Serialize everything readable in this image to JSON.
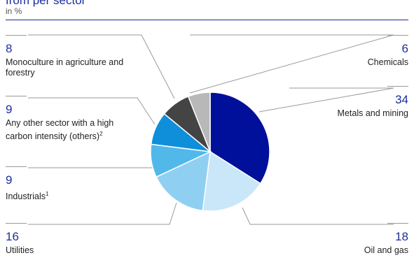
{
  "header": {
    "title": "from per sector",
    "subtitle": "in %"
  },
  "chart_data": {
    "type": "pie",
    "unit": "%",
    "slices": [
      {
        "name": "Metals and mining",
        "value": 34,
        "color": "#00109a",
        "note": ""
      },
      {
        "name": "Oil and gas",
        "value": 18,
        "color": "#c9e7f9",
        "note": ""
      },
      {
        "name": "Utilities",
        "value": 16,
        "color": "#8fd0f2",
        "note": ""
      },
      {
        "name": "Industrials",
        "value": 9,
        "color": "#52b8ea",
        "note": "1"
      },
      {
        "name": "Any other sector with a high carbon intensity (others)",
        "value": 9,
        "color": "#0f8fd9",
        "note": "2"
      },
      {
        "name": "Monoculture in agriculture and forestry",
        "value": 8,
        "color": "#444444",
        "note": ""
      },
      {
        "name": "Chemicals",
        "value": 6,
        "color": "#b8b8b8",
        "note": ""
      }
    ]
  }
}
